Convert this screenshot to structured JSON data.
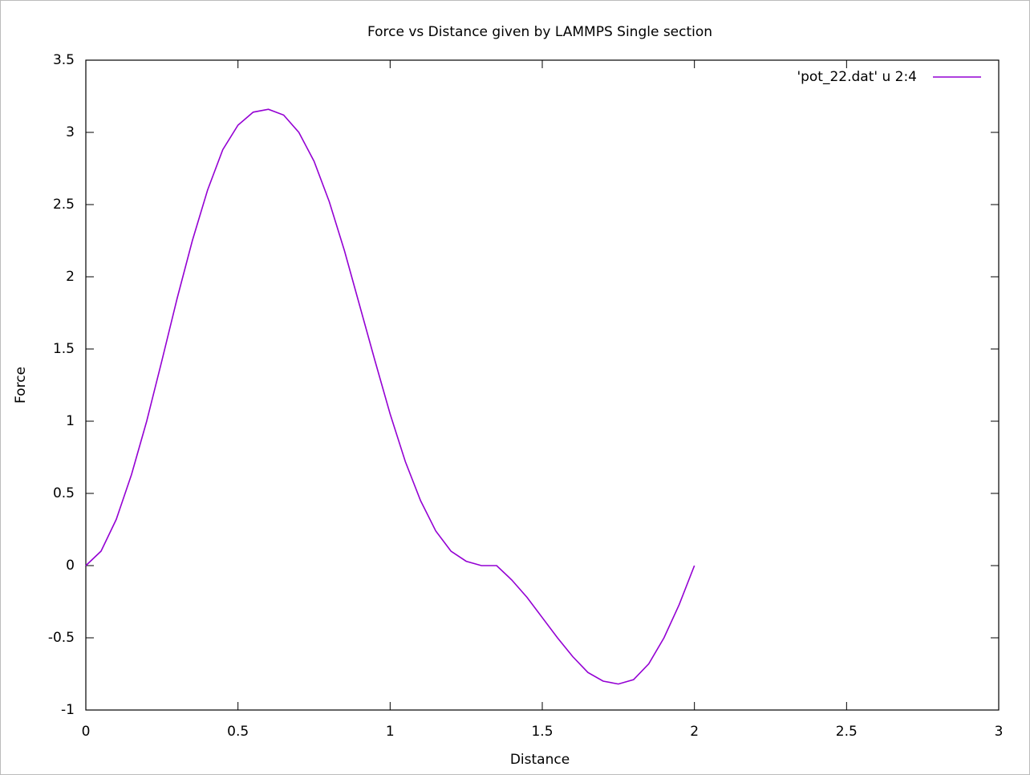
{
  "chart_data": {
    "type": "line",
    "title": "Force vs Distance given by LAMMPS Single section",
    "x_label": "Distance",
    "y_label": "Force",
    "x": [
      0,
      0.05,
      0.1,
      0.15,
      0.2,
      0.25,
      0.3,
      0.35,
      0.4,
      0.45,
      0.5,
      0.55,
      0.6,
      0.65,
      0.7,
      0.75,
      0.8,
      0.85,
      0.9,
      0.95,
      1.0,
      1.05,
      1.1,
      1.15,
      1.2,
      1.25,
      1.3,
      1.35,
      1.4,
      1.45,
      1.5,
      1.55,
      1.6,
      1.65,
      1.7,
      1.75,
      1.8,
      1.85,
      1.9,
      1.95,
      2.0
    ],
    "series": [
      {
        "name": "'pot_22.dat' u 2:4",
        "color": "#9400d3",
        "values": [
          0,
          0.1,
          0.32,
          0.63,
          1.0,
          1.42,
          1.85,
          2.25,
          2.6,
          2.88,
          3.05,
          3.14,
          3.16,
          3.12,
          3.0,
          2.8,
          2.52,
          2.18,
          1.8,
          1.42,
          1.05,
          0.72,
          0.45,
          0.24,
          0.1,
          0.03,
          0.0,
          0.0,
          -0.1,
          -0.22,
          -0.36,
          -0.5,
          -0.63,
          -0.74,
          -0.8,
          -0.82,
          -0.79,
          -0.68,
          -0.5,
          -0.27,
          0
        ]
      }
    ],
    "xlim": [
      0,
      3
    ],
    "xticks": [
      0,
      0.5,
      1,
      1.5,
      2,
      2.5,
      3
    ],
    "ylim": [
      -1,
      3.5
    ],
    "yticks": [
      -1,
      -0.5,
      0,
      0.5,
      1,
      1.5,
      2,
      2.5,
      3,
      3.5
    ],
    "legend": "top-right",
    "grid": false
  }
}
